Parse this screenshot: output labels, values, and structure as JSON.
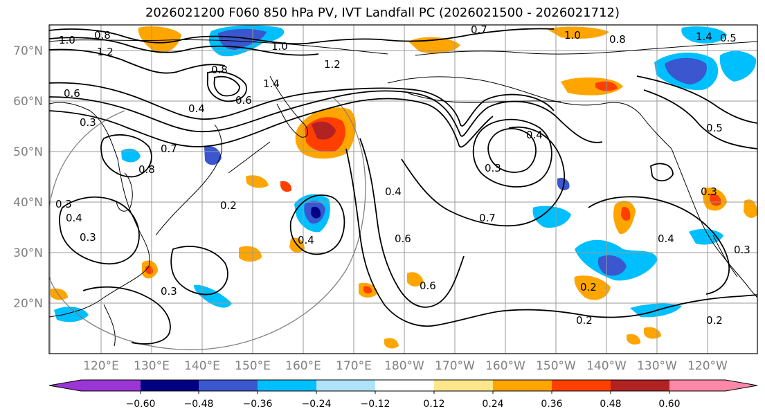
{
  "title": "2026021200 F060 850 hPa PV, IVT Landfall PC (2026021500 - 2026021712)",
  "lat_labels": [
    "70°N",
    "60°N",
    "50°N",
    "40°N",
    "30°N",
    "20°N"
  ],
  "lon_labels": [
    "120°E",
    "130°E",
    "140°E",
    "150°E",
    "160°E",
    "170°E",
    "180°W",
    "170°W",
    "160°W",
    "150°W",
    "140°W",
    "130°W",
    "120°W"
  ],
  "colorbar": {
    "colors": [
      "#9b35d6",
      "#000085",
      "#3a57cf",
      "#00bfff",
      "#afe3fa",
      "#ffffff",
      "#ffe68a",
      "#ffa500",
      "#ff3f00",
      "#b22222",
      "#ff87a8"
    ],
    "tick_labels": [
      "−0.60",
      "−0.48",
      "−0.36",
      "−0.24",
      "−0.12",
      "0.12",
      "0.24",
      "0.36",
      "0.48",
      "0.60"
    ]
  },
  "contour_labels": [
    "1.0",
    "0.8",
    "1.2",
    "1.0",
    "1.2",
    "1.4",
    "0.7",
    "0.8",
    "0.6",
    "1.0",
    "0.8",
    "1.4",
    "0.6",
    "0.3",
    "0.4",
    "0.7",
    "0.8",
    "0.2",
    "0.3",
    "0.4",
    "0.3",
    "0.4",
    "0.6",
    "0.7",
    "0.4",
    "0.3",
    "0.6",
    "0.2",
    "0.3",
    "0.2",
    "0.5",
    "0.3",
    "0.3",
    "0.4",
    "0.5",
    "0.2",
    "0.4"
  ]
}
